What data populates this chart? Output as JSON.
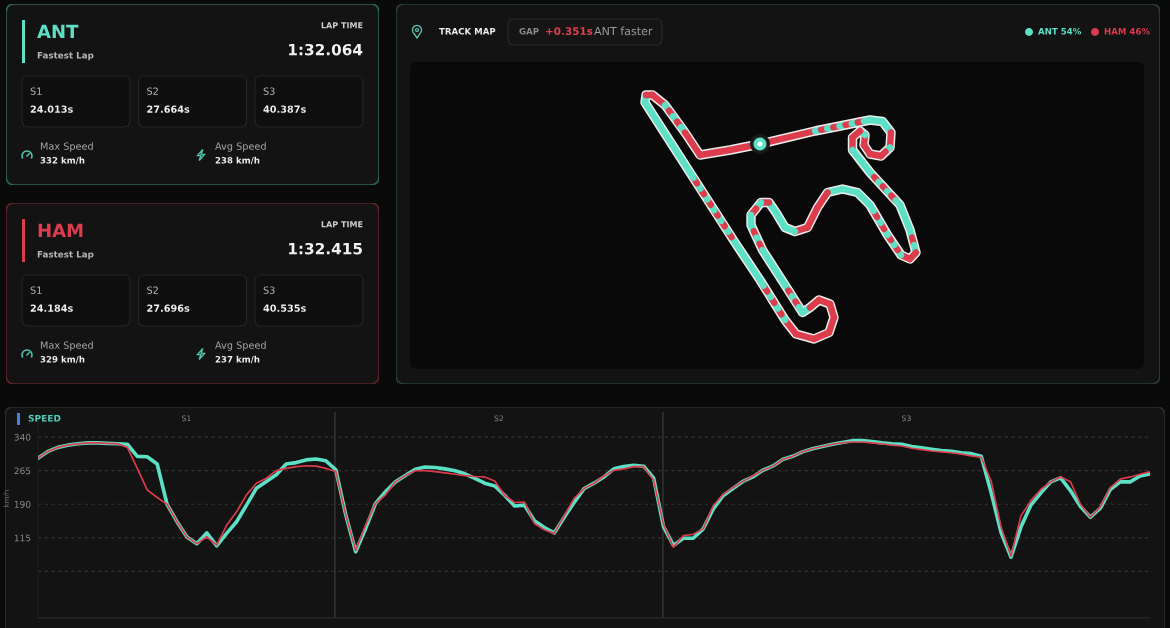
{
  "chart_data": [
    {
      "type": "other",
      "title": "ANT",
      "subtitle": "Fastest Lap",
      "color": "#5ce1c6",
      "annotations": [
        "LAP TIME",
        "1:32.064",
        "S1",
        "24.013s",
        "S2",
        "27.664s",
        "S3",
        "40.387s",
        "Max Speed",
        "332 km/h",
        "Avg Speed",
        "238 km/h"
      ]
    },
    {
      "type": "other",
      "title": "TRACK MAP",
      "annotations": [
        "GAP",
        "+0.351s",
        "ANT faster"
      ],
      "categories": [
        "ANT 54%",
        "HAM 46%"
      ],
      "colors": [
        "#5ce1c6",
        "#dc3c4c"
      ]
    },
    {
      "type": "other",
      "title": "HAM",
      "subtitle": "Fastest Lap",
      "color": "#dc3c4c",
      "annotations": [
        "LAP TIME",
        "1:32.415",
        "S1",
        "24.184s",
        "S2",
        "27.696s",
        "S3",
        "40.535s",
        "Max Speed",
        "329 km/h",
        "Avg Speed",
        "237 km/h"
      ]
    },
    {
      "type": "line",
      "title": "SPEED",
      "ylabel": "km/h",
      "categories": [
        null,
        null,
        null,
        null,
        null,
        null,
        null,
        null,
        null,
        null,
        null,
        null,
        null,
        null,
        null,
        null,
        null,
        null,
        null,
        null,
        null,
        null,
        null,
        null,
        null,
        null,
        null,
        null,
        null,
        null,
        null,
        null,
        null,
        null,
        null,
        null,
        null,
        null,
        null,
        null,
        null,
        null,
        null,
        null,
        null,
        null,
        null,
        null,
        null,
        null,
        null,
        null,
        null,
        null,
        null,
        null,
        null,
        null,
        null,
        null,
        null,
        null,
        null,
        null,
        null,
        null,
        null,
        null,
        null,
        null,
        null,
        null,
        null,
        null,
        null,
        null,
        null,
        null,
        null,
        null,
        null,
        null,
        null,
        null,
        null,
        null,
        null,
        null,
        null,
        null,
        null,
        null,
        null,
        null,
        null,
        null,
        null,
        null,
        null,
        null,
        null,
        null,
        null,
        null,
        null,
        null,
        null,
        null,
        null,
        null,
        null,
        null,
        null
      ],
      "series": [
        {
          "color": "#5ce1c6",
          "values": [
            293,
            308,
            317,
            322,
            325,
            327,
            327,
            326,
            325,
            324,
            297,
            296,
            280,
            190,
            151,
            117,
            102,
            126,
            97,
            125,
            151,
            188,
            226,
            241,
            256,
            280,
            283,
            289,
            291,
            287,
            267,
            166,
            84,
            136,
            192,
            218,
            240,
            254,
            268,
            273,
            272,
            269,
            265,
            258,
            248,
            237,
            231,
            210,
            186,
            188,
            153,
            138,
            126,
            161,
            194,
            225,
            237,
            251,
            269,
            274,
            277,
            275,
            249,
            140,
            98,
            114,
            114,
            135,
            179,
            209,
            225,
            241,
            251,
            266,
            275,
            290,
            297,
            307,
            314,
            319,
            324,
            328,
            332,
            332,
            330,
            327,
            325,
            324,
            319,
            316,
            313,
            310,
            308,
            305,
            303,
            297,
            216,
            127,
            72,
            139,
            188,
            215,
            240,
            249,
            220,
            185,
            161,
            181,
            223,
            240,
            240,
            253,
            258
          ]
        },
        {
          "color": "#dc3c4c",
          "values": [
            293,
            308,
            317,
            322,
            325,
            327,
            327,
            326,
            325,
            317,
            270,
            222,
            205,
            190,
            151,
            117,
            102,
            117,
            99,
            143,
            173,
            211,
            237,
            248,
            265,
            270,
            274,
            276,
            275,
            270,
            263,
            166,
            87,
            143,
            192,
            211,
            240,
            254,
            265,
            265,
            263,
            260,
            257,
            254,
            252,
            251,
            242,
            210,
            194,
            195,
            147,
            133,
            125,
            164,
            203,
            225,
            237,
            253,
            266,
            269,
            274,
            274,
            244,
            145,
            94,
            120,
            123,
            135,
            186,
            212,
            227,
            241,
            253,
            266,
            275,
            290,
            297,
            307,
            314,
            319,
            324,
            327,
            329,
            329,
            327,
            325,
            322,
            320,
            315,
            312,
            309,
            307,
            305,
            302,
            298,
            295,
            242,
            139,
            74,
            164,
            198,
            223,
            240,
            251,
            240,
            190,
            161,
            184,
            227,
            246,
            251,
            257,
            263
          ]
        }
      ],
      "ylim": [
        -64,
        396
      ],
      "yticks": [
        {
          "value": 40,
          "label": null
        },
        115,
        190,
        265,
        340
      ],
      "grid": "y",
      "tick_labels": "y",
      "annotations": [
        "S1",
        "S2",
        "S3"
      ]
    }
  ]
}
